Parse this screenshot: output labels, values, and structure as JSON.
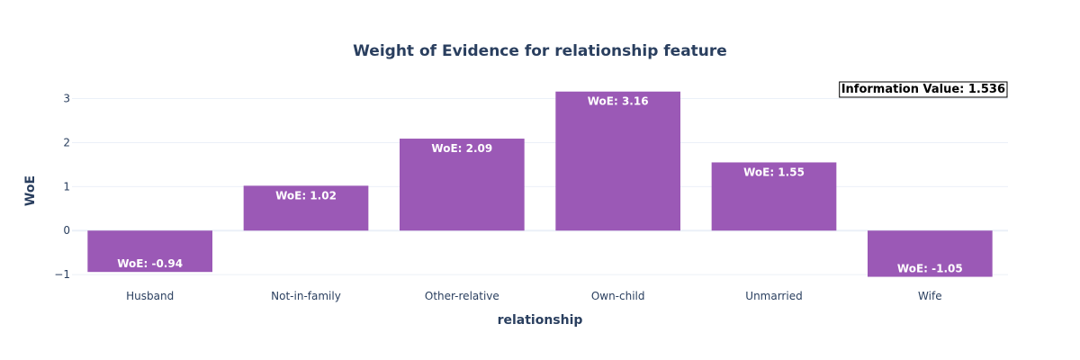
{
  "chart_data": {
    "type": "bar",
    "title": "Weight of Evidence for relationship feature",
    "xlabel": "relationship",
    "ylabel": "WoE",
    "categories": [
      "Husband",
      "Not-in-family",
      "Other-relative",
      "Own-child",
      "Unmarried",
      "Wife"
    ],
    "values": [
      -0.94,
      1.02,
      2.09,
      3.16,
      1.55,
      -1.05
    ],
    "data_labels": [
      "WoE: -0.94",
      "WoE: 1.02",
      "WoE: 2.09",
      "WoE: 3.16",
      "WoE: 1.55",
      "WoE: -1.05"
    ],
    "ylim": [
      -1.1,
      3.4
    ],
    "yticks": [
      -1,
      0,
      1,
      2,
      3
    ],
    "ytick_labels": [
      "−1",
      "0",
      "1",
      "2",
      "3"
    ],
    "bar_color": "#9b59b6",
    "grid": true,
    "annotation": "Information Value: 1.536",
    "annotation_position": "top-right"
  }
}
